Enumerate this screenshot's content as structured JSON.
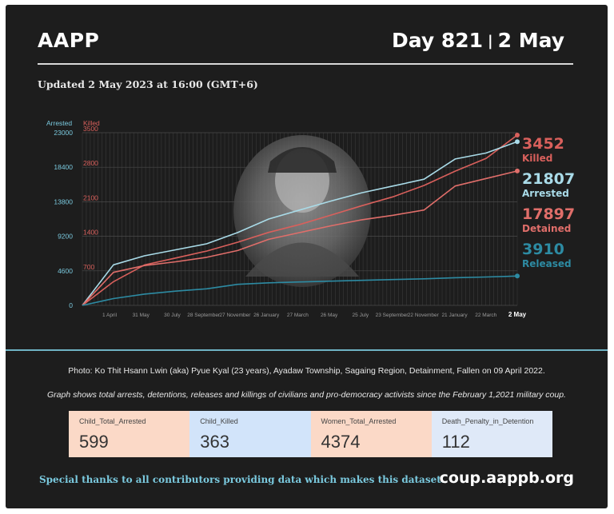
{
  "header": {
    "brand": "AAPP",
    "day": "Day 821",
    "date": "2 May",
    "updated": "Updated 2 May 2023 at 16:00 (GMT+6)"
  },
  "chart_data": {
    "type": "line",
    "left_axis_label": "Arrested",
    "right_axis_label": "Killed",
    "y_left_ticks": [
      "0",
      "4600",
      "9200",
      "13800",
      "18400",
      "23000"
    ],
    "y_right_ticks": [
      "700",
      "1400",
      "2100",
      "2800",
      "3500"
    ],
    "ylim_left": [
      0,
      23000
    ],
    "ylim_right": [
      0,
      3500
    ],
    "x_ticks": [
      "1 April",
      "31 May",
      "30 July",
      "28 September",
      "27 November",
      "26 January",
      "27 March",
      "26 May",
      "25 July",
      "23 September",
      "22 November",
      "21 January",
      "22 March",
      "2 May"
    ],
    "series": [
      {
        "name": "Killed",
        "axis": "right",
        "color": "#d9605c",
        "final": "3452",
        "values": [
          0,
          480,
          820,
          960,
          1100,
          1280,
          1480,
          1640,
          1830,
          2020,
          2200,
          2430,
          2720,
          2980,
          3452
        ]
      },
      {
        "name": "Arrested",
        "axis": "left",
        "color": "#a9dbe8",
        "final": "21807",
        "values": [
          0,
          5400,
          6600,
          7400,
          8200,
          9700,
          11500,
          12700,
          13900,
          15000,
          15900,
          16800,
          19500,
          20300,
          21807
        ]
      },
      {
        "name": "Detained",
        "axis": "left",
        "color": "#e06e6a",
        "final": "17897",
        "values": [
          0,
          4400,
          5300,
          5800,
          6400,
          7300,
          8800,
          9700,
          10600,
          11400,
          12000,
          12700,
          15900,
          16900,
          17897
        ]
      },
      {
        "name": "Released",
        "axis": "left",
        "color": "#2d8ba3",
        "final": "3910",
        "values": [
          0,
          900,
          1500,
          1900,
          2200,
          2800,
          3000,
          3120,
          3230,
          3330,
          3440,
          3540,
          3680,
          3780,
          3910
        ]
      }
    ]
  },
  "photo_caption": "Photo: Ko Thit Hsann Lwin (aka) Pyue Kyal (23 years), Ayadaw Township, Sagaing Region, Detainment,  Fallen on 09 April 2022.",
  "graph_caption": "Graph shows total arrests, detentions, releases and killings of civilians and pro-democracy activists since the February 1,2021 military coup.",
  "stats": [
    {
      "label": "Child_Total_Arrested",
      "value": "599"
    },
    {
      "label": "Child_Killed",
      "value": "363"
    },
    {
      "label": "Women_Total_Arrested",
      "value": "4374"
    },
    {
      "label": "Death_Penalty_in_Detention",
      "value": "112"
    }
  ],
  "footer": {
    "thanks": "Special thanks to all contributors providing data which makes this dataset.",
    "site": "coup.aappb.org"
  }
}
